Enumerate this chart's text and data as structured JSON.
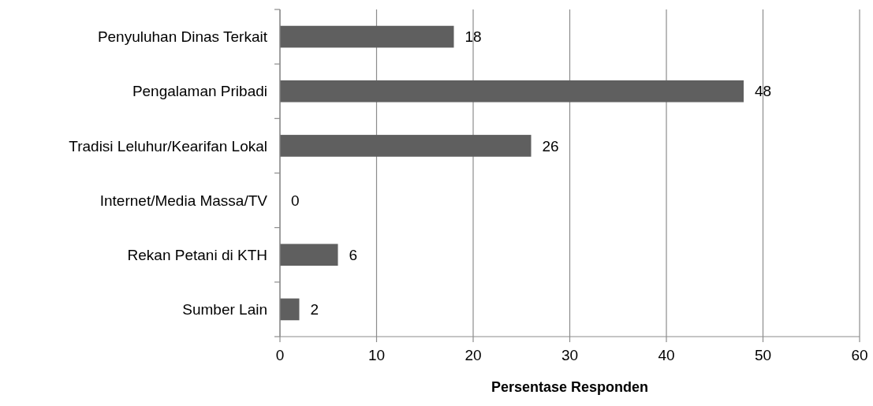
{
  "chart_data": {
    "type": "bar",
    "orientation": "horizontal",
    "xlabel": "Persentase Responden",
    "categories": [
      "Penyuluhan Dinas Terkait",
      "Pengalaman Pribadi",
      "Tradisi Leluhur/Kearifan Lokal",
      "Internet/Media Massa/TV",
      "Rekan Petani di KTH",
      "Sumber Lain"
    ],
    "values": [
      18,
      48,
      26,
      0,
      6,
      2
    ],
    "color": "#5f5f5f",
    "xlim": [
      0,
      60
    ],
    "xticks": [
      0,
      10,
      20,
      30,
      40,
      50,
      60
    ],
    "grid": "x",
    "data_labels": true
  }
}
